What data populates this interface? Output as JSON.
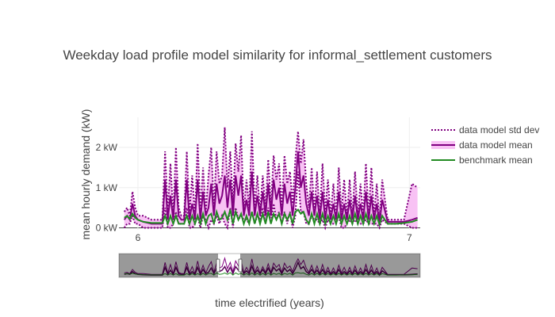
{
  "chart_data": {
    "type": "line",
    "title": "Weekday load profile model similarity for informal_settlement customers",
    "xlabel": "time electrified (years)",
    "ylabel": "mean hourly demand (kW)",
    "x_ticks": [
      "6",
      "7"
    ],
    "y_ticks": [
      "0 kW",
      "1 kW",
      "2 kW"
    ],
    "xlim": [
      5.93,
      7.04
    ],
    "ylim": [
      -0.05,
      2.75
    ],
    "grid": true,
    "legend_position": "right",
    "range_slider": true,
    "x": [
      5.95,
      5.96,
      5.97,
      5.98,
      5.99,
      6.0,
      6.02,
      6.05,
      6.09,
      6.1,
      6.11,
      6.12,
      6.13,
      6.14,
      6.15,
      6.16,
      6.17,
      6.18,
      6.19,
      6.2,
      6.21,
      6.22,
      6.23,
      6.24,
      6.25,
      6.26,
      6.27,
      6.28,
      6.29,
      6.3,
      6.31,
      6.32,
      6.33,
      6.34,
      6.35,
      6.36,
      6.37,
      6.38,
      6.39,
      6.4,
      6.41,
      6.42,
      6.43,
      6.44,
      6.45,
      6.46,
      6.47,
      6.48,
      6.49,
      6.5,
      6.51,
      6.52,
      6.53,
      6.54,
      6.55,
      6.56,
      6.57,
      6.58,
      6.59,
      6.6,
      6.61,
      6.62,
      6.63,
      6.64,
      6.65,
      6.66,
      6.67,
      6.68,
      6.69,
      6.7,
      6.71,
      6.72,
      6.73,
      6.74,
      6.75,
      6.76,
      6.77,
      6.78,
      6.79,
      6.8,
      6.81,
      6.82,
      6.83,
      6.84,
      6.85,
      6.86,
      6.87,
      6.88,
      6.89,
      6.9,
      6.92,
      6.95,
      6.98,
      7.01,
      7.03
    ],
    "series": [
      {
        "name": "data model std dev",
        "style": "dotted",
        "color": "#800080",
        "upper": [
          0.4,
          0.5,
          0.3,
          0.9,
          0.5,
          0.3,
          0.3,
          0.2,
          0.2,
          1.9,
          0.4,
          1.6,
          0.3,
          2.0,
          0.5,
          0.3,
          0.3,
          1.9,
          0.4,
          1.3,
          0.3,
          2.1,
          0.4,
          1.5,
          0.4,
          1.3,
          2.0,
          0.5,
          1.9,
          1.1,
          1.3,
          2.5,
          1.0,
          1.9,
          0.6,
          2.1,
          1.4,
          2.3,
          0.4,
          1.2,
          0.5,
          2.4,
          0.5,
          1.3,
          0.4,
          1.3,
          0.5,
          1.7,
          0.5,
          1.8,
          1.2,
          1.6,
          0.5,
          1.8,
          1.1,
          1.4,
          0.6,
          1.7,
          2.4,
          1.6,
          2.2,
          1.1,
          0.5,
          1.5,
          0.4,
          1.4,
          0.3,
          1.6,
          0.4,
          1.2,
          0.3,
          1.1,
          0.3,
          1.5,
          0.4,
          1.2,
          0.3,
          1.2,
          0.3,
          1.4,
          0.3,
          1.1,
          0.3,
          1.6,
          0.3,
          1.5,
          0.3,
          1.1,
          0.2,
          1.2,
          0.2,
          0.2,
          0.2,
          1.1,
          1.0
        ]
      },
      {
        "name": "data model mean",
        "style": "solid",
        "color": "#800080",
        "fill": "#f5a8f0",
        "values": [
          0.2,
          0.3,
          0.2,
          0.6,
          0.3,
          0.2,
          0.15,
          0.1,
          0.1,
          1.2,
          0.2,
          0.8,
          0.2,
          1.2,
          0.3,
          0.2,
          0.2,
          1.2,
          0.2,
          0.6,
          0.2,
          1.2,
          0.2,
          0.9,
          0.3,
          0.5,
          1.1,
          0.3,
          1.1,
          0.6,
          0.8,
          1.3,
          0.5,
          1.2,
          0.3,
          1.3,
          0.8,
          1.3,
          0.3,
          0.7,
          0.3,
          1.4,
          0.3,
          0.8,
          0.3,
          0.9,
          0.3,
          1.1,
          0.3,
          1.2,
          0.7,
          1.0,
          0.3,
          1.1,
          0.6,
          0.9,
          0.3,
          1.0,
          1.9,
          1.0,
          1.3,
          0.6,
          0.3,
          0.9,
          0.3,
          0.8,
          0.2,
          0.9,
          0.2,
          0.7,
          0.2,
          0.6,
          0.2,
          0.9,
          0.2,
          0.6,
          0.2,
          0.7,
          0.2,
          0.8,
          0.2,
          0.6,
          0.2,
          0.9,
          0.2,
          0.8,
          0.2,
          0.6,
          0.1,
          0.7,
          0.15,
          0.15,
          0.15,
          0.2,
          0.25
        ]
      },
      {
        "name": "benchmark mean",
        "style": "solid",
        "color": "#228b22",
        "values": [
          0.25,
          0.3,
          0.22,
          0.35,
          0.25,
          0.2,
          0.15,
          0.12,
          0.12,
          0.3,
          0.1,
          0.3,
          0.1,
          0.3,
          0.1,
          0.1,
          0.1,
          0.3,
          0.1,
          0.3,
          0.1,
          0.3,
          0.1,
          0.35,
          0.1,
          0.3,
          0.35,
          0.1,
          0.4,
          0.2,
          0.25,
          0.4,
          0.2,
          0.45,
          0.1,
          0.4,
          0.2,
          0.35,
          0.1,
          0.3,
          0.1,
          0.4,
          0.1,
          0.35,
          0.1,
          0.35,
          0.1,
          0.4,
          0.1,
          0.35,
          0.2,
          0.35,
          0.1,
          0.35,
          0.2,
          0.35,
          0.1,
          0.4,
          0.45,
          0.35,
          0.4,
          0.2,
          0.1,
          0.35,
          0.1,
          0.35,
          0.1,
          0.35,
          0.1,
          0.3,
          0.1,
          0.3,
          0.1,
          0.35,
          0.1,
          0.3,
          0.1,
          0.3,
          0.1,
          0.35,
          0.1,
          0.3,
          0.1,
          0.35,
          0.1,
          0.3,
          0.1,
          0.3,
          0.08,
          0.3,
          0.1,
          0.1,
          0.12,
          0.15,
          0.2
        ]
      }
    ]
  }
}
